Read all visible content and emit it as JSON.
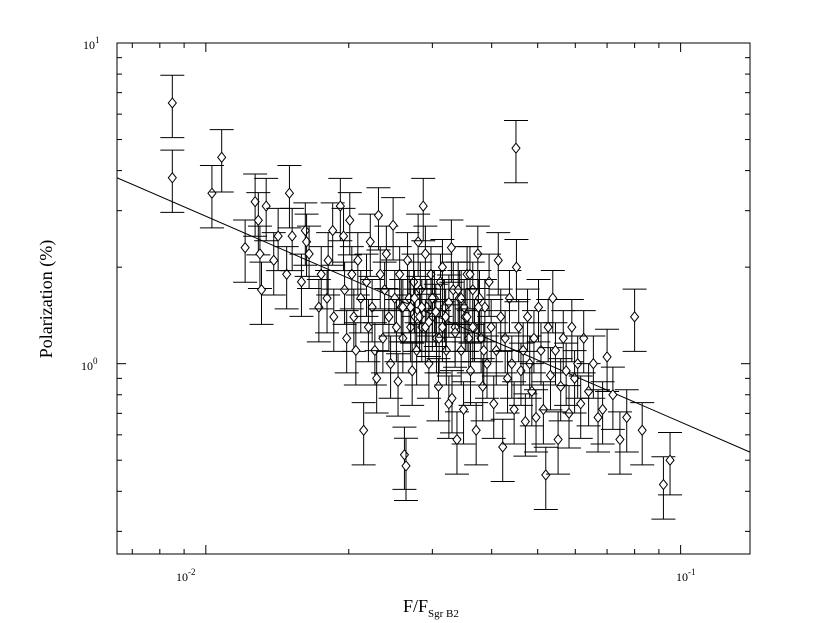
{
  "chart_data": {
    "type": "scatter",
    "title": "",
    "xlabel": {
      "main": "F/F",
      "sub": "Sgr B2"
    },
    "ylabel": "Polarization (%)",
    "x_scale": "log",
    "y_scale": "log",
    "xlim": [
      0.0065,
      0.14
    ],
    "ylim": [
      0.255,
      10
    ],
    "grid": false,
    "legend": "none",
    "x_ticks": [
      {
        "value": 0.01,
        "base": "10",
        "exp": "-2"
      },
      {
        "value": 0.1,
        "base": "10",
        "exp": "-1"
      }
    ],
    "y_ticks": [
      {
        "value": 1,
        "base": "10",
        "exp": "0"
      },
      {
        "value": 10,
        "base": "10",
        "exp": "1"
      }
    ],
    "fit_line": {
      "x": [
        0.0065,
        0.14
      ],
      "y": [
        3.8,
        0.53
      ]
    },
    "series": [
      {
        "marker": "diamond",
        "color": "#000000",
        "x": [
          0.0085,
          0.0085,
          0.0103,
          0.0108,
          0.0121,
          0.0127,
          0.0129,
          0.013,
          0.0131,
          0.0134,
          0.0139,
          0.0142,
          0.0148,
          0.015,
          0.0152,
          0.0159,
          0.0162,
          0.0163,
          0.0165,
          0.0173,
          0.0175,
          0.018,
          0.0181,
          0.0185,
          0.0186,
          0.0192,
          0.0195,
          0.0196,
          0.0198,
          0.0201,
          0.0203,
          0.0205,
          0.0207,
          0.0209,
          0.0212,
          0.0215,
          0.0218,
          0.022,
          0.0222,
          0.0224,
          0.0227,
          0.0229,
          0.0231,
          0.0233,
          0.0236,
          0.0238,
          0.024,
          0.0243,
          0.0245,
          0.0248,
          0.025,
          0.0252,
          0.0254,
          0.0256,
          0.0258,
          0.026,
          0.0262,
          0.0264,
          0.0266,
          0.0268,
          0.027,
          0.0272,
          0.0274,
          0.0276,
          0.0278,
          0.028,
          0.0283,
          0.0285,
          0.0287,
          0.029,
          0.0292,
          0.0295,
          0.0298,
          0.03,
          0.0303,
          0.0306,
          0.0309,
          0.0312,
          0.0315,
          0.0318,
          0.0321,
          0.0325,
          0.0329,
          0.0332,
          0.0335,
          0.0338,
          0.0342,
          0.0345,
          0.0349,
          0.0352,
          0.0355,
          0.0358,
          0.0361,
          0.0365,
          0.0368,
          0.0371,
          0.0374,
          0.0377,
          0.038,
          0.0383,
          0.0387,
          0.0391,
          0.0395,
          0.0399,
          0.0404,
          0.0409,
          0.0413,
          0.0418,
          0.0422,
          0.0427,
          0.0432,
          0.0436,
          0.0441,
          0.0446,
          0.0451,
          0.0456,
          0.0461,
          0.0466,
          0.0471,
          0.0476,
          0.0481,
          0.0486,
          0.0491,
          0.0496,
          0.0502,
          0.0508,
          0.0514,
          0.052,
          0.0526,
          0.0532,
          0.0538,
          0.0545,
          0.0552,
          0.0559,
          0.0566,
          0.0574,
          0.0582,
          0.059,
          0.0598,
          0.0607,
          0.0616,
          0.0625,
          0.064,
          0.0655,
          0.067,
          0.0685,
          0.07,
          0.072,
          0.0745,
          0.077,
          0.08,
          0.083,
          0.092,
          0.095,
          0.045,
          0.026,
          0.0282,
          0.03,
          0.031,
          0.033,
          0.035,
          0.027,
          0.029,
          0.032,
          0.034,
          0.036,
          0.0275,
          0.0285,
          0.0295,
          0.0305,
          0.0315,
          0.0325,
          0.0335,
          0.0345,
          0.0355,
          0.0365,
          0.0375,
          0.0385
        ],
        "y": [
          6.5,
          3.8,
          3.4,
          4.4,
          2.3,
          3.2,
          2.8,
          2.2,
          1.7,
          3.1,
          2.1,
          2.5,
          1.9,
          3.4,
          2.5,
          1.8,
          2.6,
          2.4,
          2.2,
          1.5,
          1.9,
          1.6,
          2.1,
          2.6,
          1.4,
          3.1,
          2.5,
          1.7,
          1.2,
          2.8,
          1.9,
          1.4,
          1.1,
          2.1,
          1.6,
          0.62,
          1.8,
          1.3,
          2.4,
          1.5,
          1.1,
          0.9,
          2.9,
          1.9,
          1.2,
          1.7,
          2.2,
          1.4,
          1.0,
          2.7,
          1.6,
          1.3,
          0.88,
          1.9,
          1.5,
          1.2,
          0.52,
          0.48,
          2.1,
          1.6,
          1.3,
          0.95,
          1.8,
          1.4,
          1.1,
          2.4,
          1.7,
          1.3,
          3.1,
          2.2,
          1.5,
          1.0,
          1.9,
          1.4,
          1.6,
          1.2,
          0.85,
          1.8,
          2.0,
          1.5,
          1.1,
          0.75,
          2.3,
          1.7,
          1.3,
          0.58,
          1.6,
          1.1,
          0.72,
          1.4,
          1.9,
          1.2,
          0.95,
          1.7,
          1.3,
          0.62,
          2.2,
          1.6,
          1.2,
          0.85,
          1.5,
          1.0,
          1.8,
          1.3,
          0.75,
          1.1,
          2.1,
          1.4,
          0.55,
          1.2,
          0.9,
          1.6,
          1.0,
          0.72,
          2.0,
          1.3,
          0.95,
          1.1,
          0.66,
          1.4,
          1.0,
          0.82,
          1.2,
          0.68,
          1.5,
          1.1,
          0.72,
          0.45,
          1.3,
          0.92,
          1.6,
          1.1,
          0.58,
          0.85,
          1.2,
          0.95,
          0.7,
          1.3,
          0.9,
          1.0,
          0.75,
          1.2,
          0.82,
          1.0,
          0.68,
          0.72,
          1.05,
          0.8,
          0.58,
          0.68,
          1.4,
          0.62,
          0.42,
          0.5,
          4.7,
          1.5,
          1.4,
          1.6,
          1.2,
          0.78,
          1.5,
          1.5,
          1.3,
          1.4,
          1.7,
          1.9,
          1.6,
          1.5,
          1.35,
          1.45,
          1.3,
          1.55,
          1.25,
          1.6,
          1.4,
          1.3,
          1.5,
          1.1
        ],
        "yerr_frac": 0.22
      }
    ]
  }
}
